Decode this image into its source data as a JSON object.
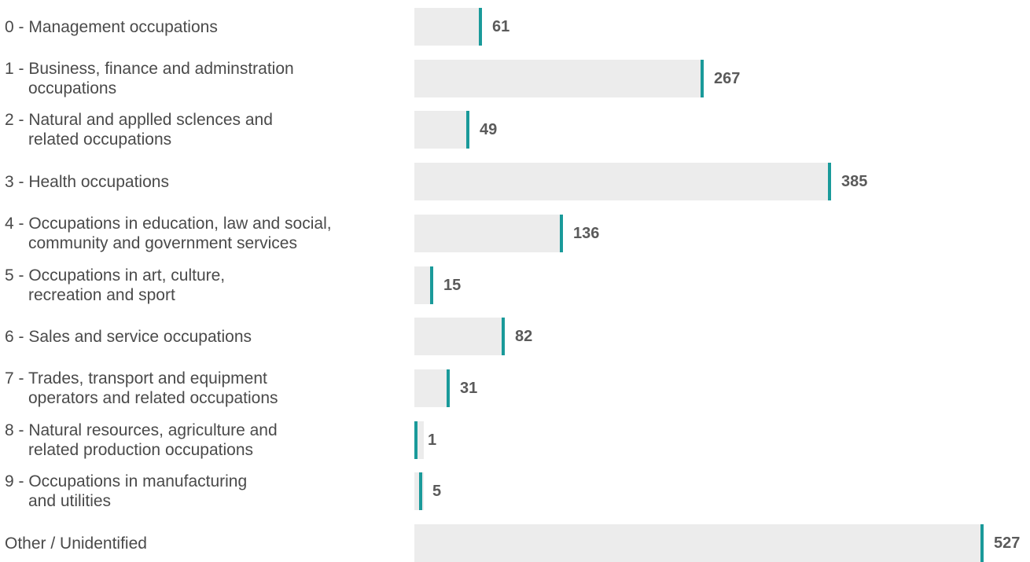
{
  "chart_data": {
    "type": "bar",
    "orientation": "horizontal",
    "categories": [
      [
        "0 - Management occupations"
      ],
      [
        "1 - Business, finance and adminstration",
        "occupations"
      ],
      [
        "2 - Natural and applled sclences and",
        "related occupations"
      ],
      [
        "3 - Health occupations"
      ],
      [
        "4 - Occupations in education, law and social,",
        "community and government services"
      ],
      [
        "5 - Occupations in art, culture,",
        "recreation and sport"
      ],
      [
        "6 - Sales and service occupations"
      ],
      [
        "7 - Trades, transport and equipment",
        "operators and related occupations"
      ],
      [
        "8 - Natural resources, agriculture and",
        "related production occupations"
      ],
      [
        "9 - Occupations in manufacturing",
        "and utilities"
      ],
      [
        "Other / Unidentified"
      ]
    ],
    "values": [
      61,
      267,
      49,
      385,
      136,
      15,
      82,
      31,
      1,
      5,
      527
    ],
    "xlim": [
      0,
      527
    ],
    "grid": false,
    "legend": "none",
    "colors": {
      "bar_background": "#ececec",
      "marker": "#1a9a9a",
      "label": "#4a4a4a",
      "value": "#5a5a5a"
    }
  }
}
